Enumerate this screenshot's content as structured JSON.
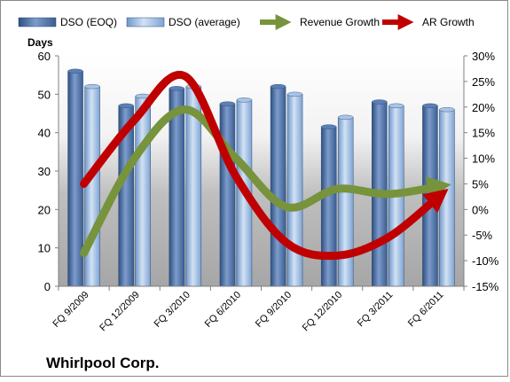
{
  "chart_data": {
    "type": "bar",
    "title": "",
    "footer_label": "Whirlpool Corp.",
    "ylabel_left": "Days",
    "categories": [
      "FQ 9/2009",
      "FQ 12/2009",
      "FQ 3/2010",
      "FQ 6/2010",
      "FQ 9/2010",
      "FQ 12/2010",
      "FQ 3/2011",
      "FQ 6/2011"
    ],
    "y_left": {
      "min": 0,
      "max": 60,
      "ticks": [
        "0",
        "10",
        "20",
        "30",
        "40",
        "50",
        "60"
      ]
    },
    "y_right": {
      "min": -15,
      "max": 30,
      "ticks": [
        "-15%",
        "-10%",
        "-5%",
        "0%",
        "5%",
        "10%",
        "15%",
        "20%",
        "25%",
        "30%"
      ]
    },
    "bar_series": [
      {
        "name": "DSO (EOQ)",
        "axis": "left",
        "color": "#4a6fa5",
        "values": [
          56,
          47,
          51.5,
          47.5,
          52,
          41.5,
          48,
          47
        ]
      },
      {
        "name": "DSO (average)",
        "axis": "left",
        "color": "#8fb3de",
        "values": [
          52,
          49.5,
          52,
          48.5,
          50,
          44,
          47,
          46
        ]
      }
    ],
    "line_series": [
      {
        "name": "Revenue Growth",
        "axis": "right",
        "color": "#77933c",
        "values": [
          -8.5,
          10,
          19.5,
          10,
          0.5,
          4,
          3,
          4.5
        ]
      },
      {
        "name": "AR Growth",
        "axis": "right",
        "color": "#c00000",
        "values": [
          5,
          17.5,
          26,
          6.5,
          -6.5,
          -9,
          -5.5,
          2.5
        ]
      }
    ],
    "grid": false,
    "legend_position": "top"
  }
}
